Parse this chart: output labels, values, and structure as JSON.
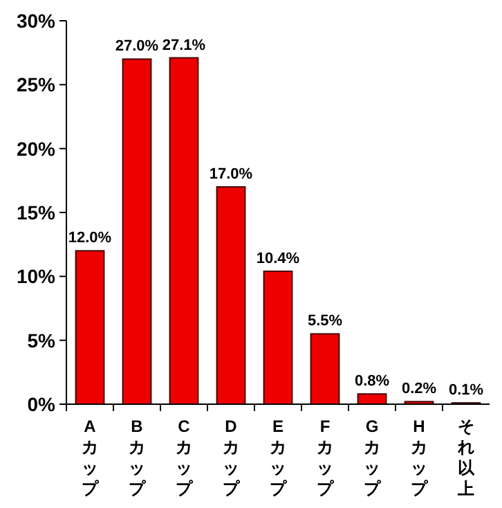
{
  "chart_data": {
    "type": "bar",
    "categories": [
      "Aカップ",
      "Bカップ",
      "Cカップ",
      "Dカップ",
      "Eカップ",
      "Fカップ",
      "Gカップ",
      "Hカップ",
      "それ以上"
    ],
    "values": [
      12.0,
      27.0,
      27.1,
      17.0,
      10.4,
      5.5,
      0.8,
      0.2,
      0.1
    ],
    "value_labels": [
      "12.0%",
      "27.0%",
      "27.1%",
      "17.0%",
      "10.4%",
      "5.5%",
      "0.8%",
      "0.2%",
      "0.1%"
    ],
    "color": "#ee0000",
    "ylim": [
      0,
      30
    ],
    "yticks": [
      {
        "value": 0,
        "label": "0%"
      },
      {
        "value": 5,
        "label": "5%"
      },
      {
        "value": 10,
        "label": "10%"
      },
      {
        "value": 15,
        "label": "15%"
      },
      {
        "value": 20,
        "label": "20%"
      },
      {
        "value": 25,
        "label": "25%"
      },
      {
        "value": 30,
        "label": "30%"
      }
    ],
    "grid": false
  }
}
